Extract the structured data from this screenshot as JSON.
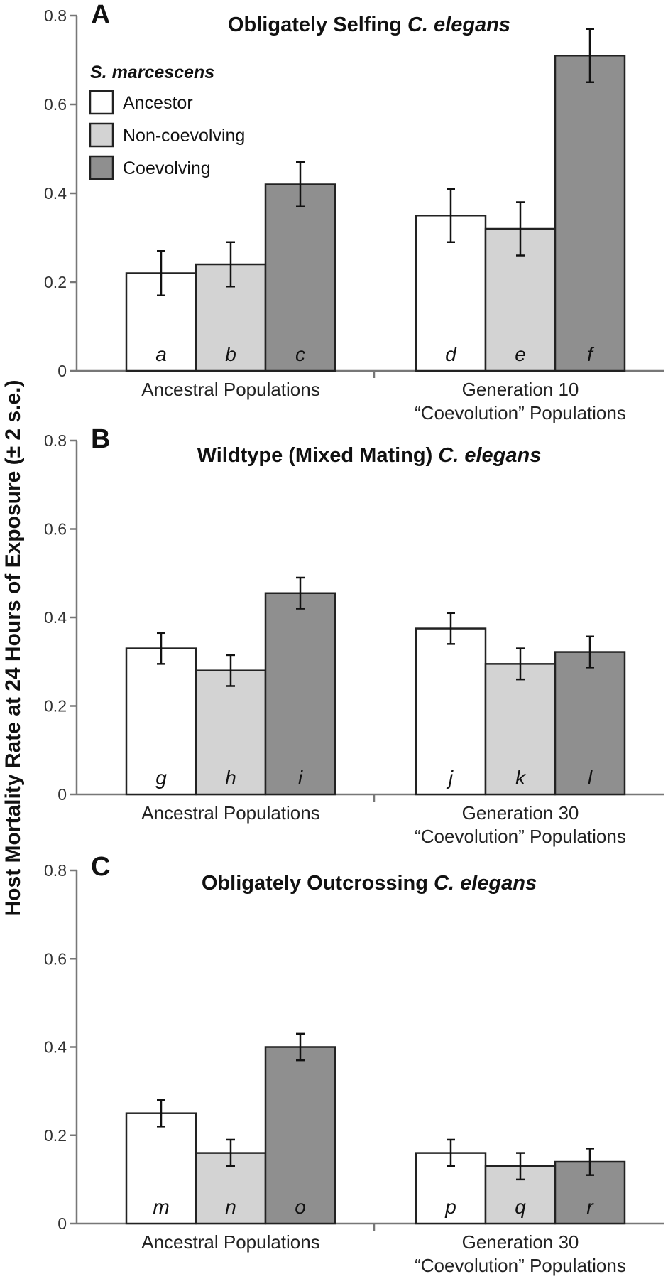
{
  "y_axis_label": "Host Mortality Rate at 24 Hours of Exposure (± 2 s.e.)",
  "legend": {
    "title": "S. marcescens",
    "items": [
      {
        "label": "Ancestor",
        "color": "#ffffff"
      },
      {
        "label": "Non-coevolving",
        "color": "#d3d3d3"
      },
      {
        "label": "Coevolving",
        "color": "#8f8f8f"
      }
    ]
  },
  "chart_data": [
    {
      "type": "bar",
      "panel": "A",
      "title_plain": "Obligately Selfing ",
      "title_italic": "C. elegans",
      "ylim": [
        0,
        0.8
      ],
      "yticks": [
        "0",
        "0.2",
        "0.4",
        "0.6",
        "0.8"
      ],
      "groups": [
        {
          "label_lines": [
            "Ancestral Populations"
          ],
          "values": [
            0.22,
            0.24,
            0.42
          ],
          "errors": [
            0.05,
            0.05,
            0.05
          ],
          "bar_labels": [
            "a",
            "b",
            "c"
          ]
        },
        {
          "label_lines": [
            "Generation 10",
            "“Coevolution” Populations"
          ],
          "values": [
            0.35,
            0.32,
            0.71
          ],
          "errors": [
            0.06,
            0.06,
            0.06
          ],
          "bar_labels": [
            "d",
            "e",
            "f"
          ]
        }
      ]
    },
    {
      "type": "bar",
      "panel": "B",
      "title_plain": "Wildtype (Mixed Mating) ",
      "title_italic": "C. elegans",
      "ylim": [
        0,
        0.8
      ],
      "yticks": [
        "0",
        "0.2",
        "0.4",
        "0.6",
        "0.8"
      ],
      "groups": [
        {
          "label_lines": [
            "Ancestral Populations"
          ],
          "values": [
            0.33,
            0.28,
            0.455
          ],
          "errors": [
            0.035,
            0.035,
            0.035
          ],
          "bar_labels": [
            "g",
            "h",
            "i"
          ]
        },
        {
          "label_lines": [
            "Generation 30",
            "“Coevolution” Populations"
          ],
          "values": [
            0.375,
            0.295,
            0.322
          ],
          "errors": [
            0.035,
            0.035,
            0.035
          ],
          "bar_labels": [
            "j",
            "k",
            "l"
          ]
        }
      ]
    },
    {
      "type": "bar",
      "panel": "C",
      "title_plain": "Obligately Outcrossing ",
      "title_italic": "C. elegans",
      "ylim": [
        0,
        0.8
      ],
      "yticks": [
        "0",
        "0.2",
        "0.4",
        "0.6",
        "0.8"
      ],
      "groups": [
        {
          "label_lines": [
            "Ancestral Populations"
          ],
          "values": [
            0.25,
            0.16,
            0.4
          ],
          "errors": [
            0.03,
            0.03,
            0.03
          ],
          "bar_labels": [
            "m",
            "n",
            "o"
          ]
        },
        {
          "label_lines": [
            "Generation 30",
            "“Coevolution” Populations"
          ],
          "values": [
            0.16,
            0.13,
            0.14
          ],
          "errors": [
            0.03,
            0.03,
            0.03
          ],
          "bar_labels": [
            "p",
            "q",
            "r"
          ]
        }
      ]
    }
  ]
}
